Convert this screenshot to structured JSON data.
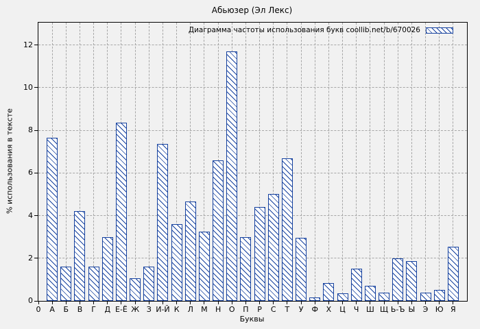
{
  "chart_data": {
    "type": "bar",
    "title": "Абьюзер (Эл Лекс)",
    "legend": "Диаграмма частоты использования букв coollib.net/b/670026",
    "legend_position": "top-right-inside",
    "xlabel": "Буквы",
    "ylabel": "% использования в тексте",
    "categories": [
      "0",
      "А",
      "Б",
      "В",
      "Г",
      "Д",
      "Е-Ё",
      "Ж",
      "З",
      "И-Й",
      "К",
      "Л",
      "М",
      "Н",
      "О",
      "П",
      "Р",
      "С",
      "Т",
      "У",
      "Ф",
      "Х",
      "Ц",
      "Ч",
      "Ш",
      "Щ",
      "Ь-Ъ",
      "Ы",
      "Э",
      "Ю",
      "Я"
    ],
    "values": [
      null,
      7.65,
      1.6,
      4.2,
      1.6,
      3.0,
      8.35,
      1.05,
      1.6,
      7.35,
      3.6,
      4.65,
      3.25,
      6.6,
      11.7,
      3.0,
      4.4,
      5.0,
      6.7,
      2.95,
      0.15,
      0.85,
      0.35,
      1.5,
      0.7,
      0.4,
      2.0,
      1.85,
      0.38,
      0.52,
      2.55
    ],
    "yticks": [
      0,
      2,
      4,
      6,
      8,
      10,
      12
    ],
    "ylim": [
      0,
      13.05
    ],
    "grid": true,
    "hatch": "diagonal-down",
    "colors": {
      "bar": "#14409e",
      "bar_fill": "#ffffff",
      "grid": "#a6a6a6",
      "background": "#f1f1f1",
      "border": "#000000",
      "text": "#000000"
    }
  }
}
